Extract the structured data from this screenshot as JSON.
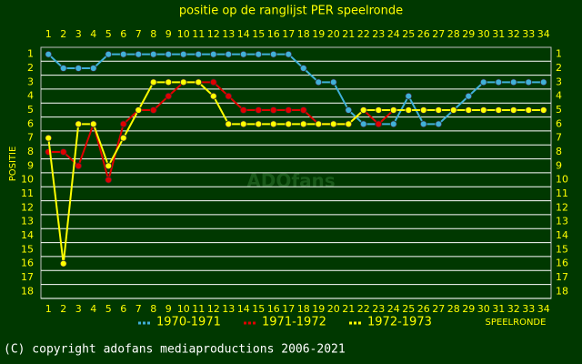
{
  "chart_data": {
    "type": "line",
    "title": "positie op de ranglijst PER speelronde",
    "xlabel": "SPEELRONDE",
    "ylabel": "POSITIE",
    "watermark": "ADOfans",
    "footer": "(C) copyright adofans mediaproductions 2006-2021",
    "x": [
      1,
      2,
      3,
      4,
      5,
      6,
      7,
      8,
      9,
      10,
      11,
      12,
      13,
      14,
      15,
      16,
      17,
      18,
      19,
      20,
      21,
      22,
      23,
      24,
      25,
      26,
      27,
      28,
      29,
      30,
      31,
      32,
      33,
      34
    ],
    "xlim": [
      0.5,
      34.5
    ],
    "xticks": [
      1,
      2,
      3,
      4,
      5,
      6,
      7,
      8,
      9,
      10,
      11,
      12,
      13,
      14,
      15,
      16,
      17,
      18,
      19,
      20,
      21,
      22,
      23,
      24,
      25,
      26,
      27,
      28,
      29,
      30,
      31,
      32,
      33,
      34
    ],
    "ylim": [
      18.5,
      0.5
    ],
    "yticks": [
      1,
      2,
      3,
      4,
      5,
      6,
      7,
      8,
      9,
      10,
      11,
      12,
      13,
      14,
      15,
      16,
      17,
      18
    ],
    "grid": true,
    "series": [
      {
        "name": "1970-1971",
        "color": "#40b0d8",
        "values": [
          1,
          2,
          2,
          2,
          1,
          1,
          1,
          1,
          1,
          1,
          1,
          1,
          1,
          1,
          1,
          1,
          1,
          2,
          3,
          3,
          5,
          6,
          6,
          6,
          4,
          6,
          6,
          5,
          4,
          3,
          3,
          3,
          3,
          3
        ]
      },
      {
        "name": "1971-1972",
        "color": "#e00000",
        "values": [
          8,
          8,
          9,
          6,
          10,
          6,
          5,
          5,
          4,
          3,
          3,
          3,
          4,
          5,
          5,
          5,
          5,
          5,
          6,
          6,
          6,
          5,
          6,
          5,
          5,
          5,
          5,
          5,
          5,
          5,
          5,
          5,
          5,
          5
        ]
      },
      {
        "name": "1972-1973",
        "color": "#ffff00",
        "values": [
          7,
          16,
          6,
          6,
          9,
          7,
          5,
          3,
          3,
          3,
          3,
          4,
          6,
          6,
          6,
          6,
          6,
          6,
          6,
          6,
          6,
          5,
          5,
          5,
          5,
          5,
          5,
          5,
          5,
          5,
          5,
          5,
          5,
          5
        ]
      }
    ]
  }
}
